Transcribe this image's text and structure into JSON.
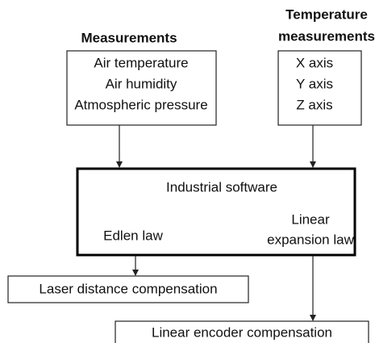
{
  "nodes": [
    {
      "title": "Measurements",
      "lines": [
        "Air temperature",
        "Air humidity",
        "Atmospheric pressure"
      ]
    },
    {
      "title_lines": [
        "Temperature",
        "measurements"
      ],
      "lines": [
        "X  axis",
        "Y  axis",
        "Z axis"
      ]
    },
    {
      "title": "Industrial software",
      "left": "Edlen law",
      "right_lines": [
        "Linear",
        "expansion law"
      ]
    },
    {
      "label": "Laser distance compensation"
    },
    {
      "label": "Linear encoder compensation"
    }
  ]
}
